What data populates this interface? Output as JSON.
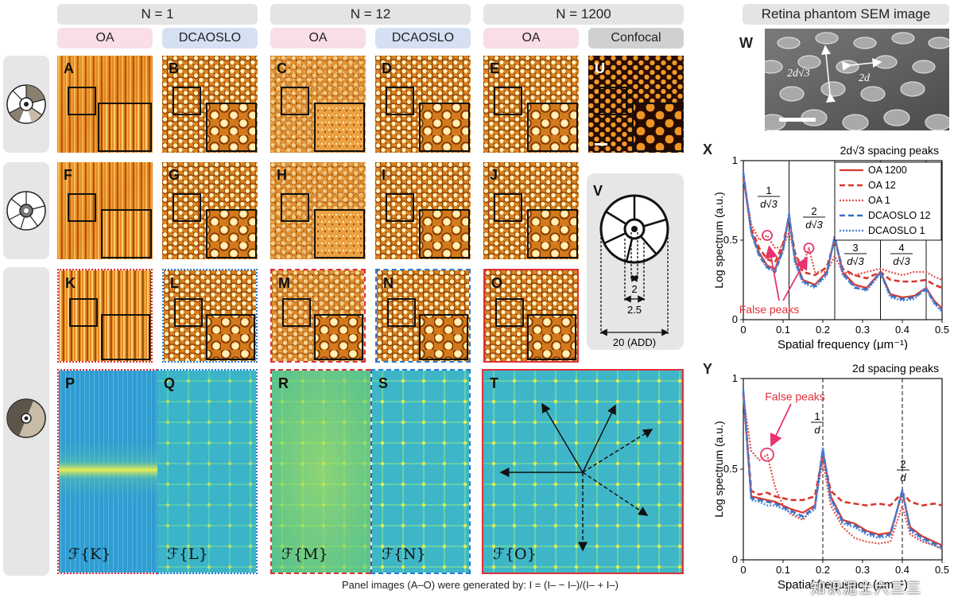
{
  "headers": {
    "n1": "N = 1",
    "n12": "N = 12",
    "n1200": "N = 1200",
    "sem": "Retina phantom SEM image"
  },
  "subheaders": [
    "OA",
    "DCAOSLO",
    "OA",
    "DCAOSLO",
    "OA",
    "Confocal"
  ],
  "panels": {
    "A": "A",
    "B": "B",
    "C": "C",
    "D": "D",
    "E": "E",
    "U": "U",
    "F": "F",
    "G": "G",
    "H": "H",
    "I": "I",
    "J": "J",
    "V": "V",
    "K": "K",
    "L": "L",
    "M": "M",
    "N": "N",
    "O": "O",
    "P": "P",
    "Q": "Q",
    "R": "R",
    "S": "S",
    "T": "T",
    "W": "W",
    "X": "X",
    "Y": "Y"
  },
  "fourier_labels": {
    "P": "ℱ{K}",
    "Q": "ℱ{L}",
    "R": "ℱ{M}",
    "S": "ℱ{N}",
    "T": "ℱ{O}"
  },
  "sem_labels": {
    "a": "2d√3",
    "b": "2d"
  },
  "diagram_v": {
    "v1": "2",
    "v2": "2.5",
    "v3": "20 (ADD)"
  },
  "caption": "Panel images (A–O) were generated by: I = (I– − I–)/(I– + I–)",
  "chart_data": [
    {
      "type": "line",
      "title": "2d√3 spacing peaks",
      "xlabel": "Spatial frequency (μm⁻¹)",
      "ylabel": "Log spectrum (a.u.)",
      "xlim": [
        0,
        0.5
      ],
      "ylim": [
        0,
        1
      ],
      "xticks": [
        "0",
        "0.1",
        "0.2",
        "0.3",
        "0.4",
        "0.5"
      ],
      "yticks": [
        "0",
        "0.5",
        "1"
      ],
      "legend": [
        "OA 1200",
        "OA 12",
        "OA 1",
        "DCAOSLO 12",
        "DCAOSLO 1"
      ],
      "legend_position": "top-right",
      "annotations": [
        "1/d√3",
        "2/d√3",
        "3/d√3",
        "4/d√3",
        "False peaks"
      ],
      "peak_lines_x": [
        0.115,
        0.23,
        0.345,
        0.46
      ],
      "series": [
        {
          "name": "OA 1200",
          "x": [
            0,
            0.02,
            0.04,
            0.06,
            0.08,
            0.1,
            0.115,
            0.13,
            0.15,
            0.18,
            0.21,
            0.23,
            0.25,
            0.28,
            0.31,
            0.345,
            0.37,
            0.4,
            0.43,
            0.46,
            0.48,
            0.5
          ],
          "y": [
            0.9,
            0.55,
            0.42,
            0.34,
            0.32,
            0.45,
            0.65,
            0.38,
            0.25,
            0.22,
            0.3,
            0.52,
            0.3,
            0.22,
            0.2,
            0.3,
            0.16,
            0.14,
            0.15,
            0.2,
            0.12,
            0.07
          ]
        },
        {
          "name": "OA 12",
          "x": [
            0,
            0.02,
            0.04,
            0.06,
            0.08,
            0.1,
            0.115,
            0.13,
            0.15,
            0.18,
            0.21,
            0.23,
            0.25,
            0.28,
            0.31,
            0.345,
            0.37,
            0.4,
            0.43,
            0.46,
            0.48,
            0.5
          ],
          "y": [
            0.9,
            0.57,
            0.45,
            0.38,
            0.36,
            0.48,
            0.64,
            0.42,
            0.3,
            0.28,
            0.33,
            0.5,
            0.32,
            0.28,
            0.26,
            0.3,
            0.25,
            0.24,
            0.24,
            0.25,
            0.22,
            0.2
          ]
        },
        {
          "name": "OA 1",
          "x": [
            0,
            0.02,
            0.04,
            0.06,
            0.08,
            0.1,
            0.115,
            0.13,
            0.15,
            0.165,
            0.18,
            0.21,
            0.23,
            0.25,
            0.28,
            0.31,
            0.345,
            0.37,
            0.4,
            0.43,
            0.46,
            0.48,
            0.5
          ],
          "y": [
            0.88,
            0.6,
            0.5,
            0.53,
            0.45,
            0.46,
            0.55,
            0.4,
            0.35,
            0.45,
            0.3,
            0.3,
            0.4,
            0.3,
            0.28,
            0.3,
            0.32,
            0.3,
            0.28,
            0.3,
            0.3,
            0.27,
            0.25
          ]
        },
        {
          "name": "DCAOSLO 12",
          "x": [
            0,
            0.02,
            0.04,
            0.06,
            0.08,
            0.1,
            0.115,
            0.13,
            0.15,
            0.18,
            0.21,
            0.23,
            0.25,
            0.28,
            0.31,
            0.345,
            0.37,
            0.4,
            0.43,
            0.46,
            0.48,
            0.5
          ],
          "y": [
            0.92,
            0.55,
            0.4,
            0.33,
            0.3,
            0.44,
            0.66,
            0.37,
            0.24,
            0.21,
            0.29,
            0.52,
            0.29,
            0.2,
            0.19,
            0.3,
            0.15,
            0.13,
            0.14,
            0.19,
            0.11,
            0.06
          ]
        },
        {
          "name": "DCAOSLO 1",
          "x": [
            0,
            0.02,
            0.04,
            0.06,
            0.08,
            0.1,
            0.115,
            0.13,
            0.15,
            0.18,
            0.21,
            0.23,
            0.25,
            0.28,
            0.31,
            0.345,
            0.37,
            0.4,
            0.43,
            0.46,
            0.48,
            0.5
          ],
          "y": [
            0.93,
            0.54,
            0.41,
            0.32,
            0.31,
            0.43,
            0.67,
            0.36,
            0.23,
            0.2,
            0.28,
            0.53,
            0.28,
            0.21,
            0.18,
            0.29,
            0.14,
            0.12,
            0.13,
            0.2,
            0.1,
            0.05
          ]
        }
      ]
    },
    {
      "type": "line",
      "title": "2d spacing peaks",
      "xlabel": "Spatial frequency (μm⁻¹)",
      "ylabel": "Log spectrum (a.u.)",
      "xlim": [
        0,
        0.5
      ],
      "ylim": [
        0,
        1
      ],
      "xticks": [
        "0",
        "0.1",
        "0.2",
        "0.3",
        "0.4",
        "0.5"
      ],
      "yticks": [
        "0",
        "0.5",
        "1"
      ],
      "annotations": [
        "1/d",
        "2/d",
        "False peaks"
      ],
      "peak_lines_x": [
        0.2,
        0.4
      ],
      "series": [
        {
          "name": "OA 1200",
          "x": [
            0,
            0.02,
            0.04,
            0.06,
            0.08,
            0.1,
            0.12,
            0.15,
            0.18,
            0.2,
            0.22,
            0.25,
            0.28,
            0.31,
            0.34,
            0.37,
            0.4,
            0.42,
            0.45,
            0.48,
            0.5
          ],
          "y": [
            0.92,
            0.35,
            0.34,
            0.33,
            0.32,
            0.3,
            0.28,
            0.26,
            0.3,
            0.6,
            0.35,
            0.22,
            0.2,
            0.16,
            0.14,
            0.15,
            0.37,
            0.18,
            0.13,
            0.1,
            0.08
          ]
        },
        {
          "name": "OA 12",
          "x": [
            0,
            0.02,
            0.04,
            0.06,
            0.08,
            0.1,
            0.12,
            0.15,
            0.18,
            0.2,
            0.22,
            0.25,
            0.28,
            0.31,
            0.34,
            0.37,
            0.4,
            0.42,
            0.45,
            0.48,
            0.5
          ],
          "y": [
            0.92,
            0.38,
            0.36,
            0.37,
            0.35,
            0.34,
            0.33,
            0.33,
            0.35,
            0.58,
            0.38,
            0.32,
            0.31,
            0.3,
            0.31,
            0.3,
            0.37,
            0.32,
            0.3,
            0.31,
            0.3
          ]
        },
        {
          "name": "OA 1",
          "x": [
            0,
            0.02,
            0.04,
            0.06,
            0.08,
            0.1,
            0.12,
            0.15,
            0.18,
            0.2,
            0.22,
            0.25,
            0.28,
            0.31,
            0.34,
            0.37,
            0.4,
            0.42,
            0.45,
            0.48,
            0.5
          ],
          "y": [
            0.9,
            0.6,
            0.55,
            0.58,
            0.4,
            0.3,
            0.25,
            0.22,
            0.3,
            0.55,
            0.3,
            0.18,
            0.12,
            0.1,
            0.09,
            0.1,
            0.3,
            0.14,
            0.1,
            0.08,
            0.06
          ]
        },
        {
          "name": "DCAOSLO 12",
          "x": [
            0,
            0.02,
            0.04,
            0.06,
            0.08,
            0.1,
            0.12,
            0.15,
            0.18,
            0.2,
            0.22,
            0.25,
            0.28,
            0.31,
            0.34,
            0.37,
            0.4,
            0.42,
            0.45,
            0.48,
            0.5
          ],
          "y": [
            0.93,
            0.34,
            0.33,
            0.32,
            0.31,
            0.29,
            0.27,
            0.24,
            0.29,
            0.61,
            0.34,
            0.21,
            0.19,
            0.15,
            0.13,
            0.14,
            0.38,
            0.17,
            0.12,
            0.09,
            0.07
          ]
        },
        {
          "name": "DCAOSLO 1",
          "x": [
            0,
            0.02,
            0.04,
            0.06,
            0.08,
            0.1,
            0.12,
            0.15,
            0.18,
            0.2,
            0.22,
            0.25,
            0.28,
            0.31,
            0.34,
            0.37,
            0.4,
            0.42,
            0.45,
            0.48,
            0.5
          ],
          "y": [
            0.94,
            0.33,
            0.32,
            0.3,
            0.3,
            0.28,
            0.26,
            0.23,
            0.28,
            0.62,
            0.33,
            0.2,
            0.18,
            0.14,
            0.12,
            0.13,
            0.39,
            0.16,
            0.11,
            0.08,
            0.06
          ]
        }
      ]
    }
  ],
  "watermark": "知识泥士六三三"
}
